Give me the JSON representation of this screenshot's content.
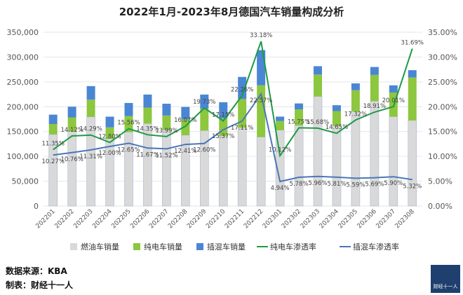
{
  "chart_data": {
    "type": "bar",
    "title": "2022年1月-2023年8月德国汽车销量构成分析",
    "categories": [
      "202201",
      "202202",
      "202203",
      "202204",
      "202205",
      "202206",
      "202207",
      "202208",
      "202209",
      "202210",
      "202211",
      "202212",
      "202301",
      "202302",
      "202303",
      "202304",
      "202305",
      "202306",
      "202307",
      "202308"
    ],
    "totals_approx": [
      184000,
      200000,
      241500,
      180000,
      207500,
      224500,
      206000,
      199500,
      224500,
      209000,
      260000,
      314000,
      180000,
      206600,
      281600,
      203000,
      247000,
      280000,
      243000,
      273600
    ],
    "series": [
      {
        "name": "燃油车销量",
        "kind": "bar",
        "color": "#d9d9d9"
      },
      {
        "name": "纯电车销量",
        "kind": "bar",
        "color": "#8dc63f"
      },
      {
        "name": "插混车销量",
        "kind": "bar",
        "color": "#4a86d4"
      },
      {
        "name": "纯电车渗透率",
        "kind": "line",
        "color": "#1e9a46",
        "values": [
          11.35,
          14.12,
          14.29,
          12.8,
          15.56,
          14.35,
          13.99,
          16.07,
          19.73,
          17.15,
          22.26,
          33.18,
          10.12,
          15.75,
          15.68,
          14.65,
          17.32,
          18.91,
          20.01,
          31.69
        ]
      },
      {
        "name": "插混车渗透率",
        "kind": "line",
        "color": "#4a76b8",
        "values": [
          10.27,
          10.76,
          11.31,
          12.0,
          12.65,
          11.67,
          11.52,
          12.41,
          12.6,
          15.37,
          17.11,
          22.57,
          4.94,
          5.78,
          5.96,
          5.81,
          5.59,
          5.69,
          5.9,
          5.32
        ]
      }
    ],
    "y_left": {
      "range": [
        0,
        350000
      ],
      "ticks": [
        "0",
        "50,000",
        "100,000",
        "150,000",
        "200,000",
        "250,000",
        "300,000",
        "350,000"
      ]
    },
    "y_right": {
      "range": [
        0,
        35
      ],
      "ticks": [
        "0.00%",
        "5.00%",
        "10.00%",
        "15.00%",
        "20.00%",
        "25.00%",
        "30.00%",
        "35.00%"
      ]
    },
    "grid": true,
    "legend": "bottom"
  },
  "footer": {
    "source": "数据来源：KBA",
    "maker": "制表：财经十一人"
  },
  "logo": {
    "text": "财经十一人"
  }
}
